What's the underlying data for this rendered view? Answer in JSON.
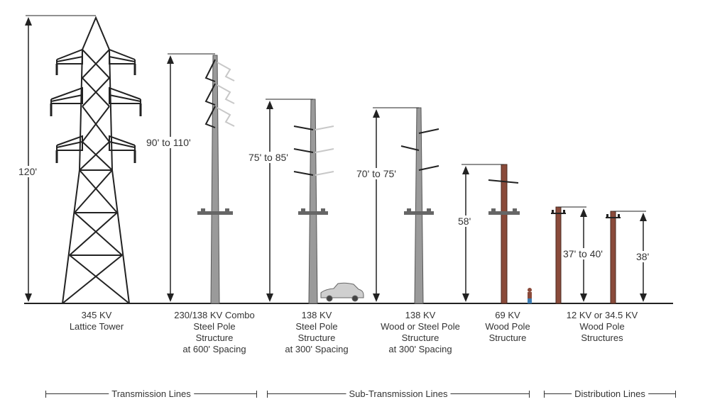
{
  "structures": [
    {
      "voltage": "345 KV",
      "lines": [
        "Lattice Tower"
      ],
      "height": "120'"
    },
    {
      "voltage": "230/138 KV Combo",
      "lines": [
        "Steel Pole",
        "Structure",
        "at 600' Spacing"
      ],
      "height": "90' to 110'"
    },
    {
      "voltage": "138 KV",
      "lines": [
        "Steel Pole",
        "Structure",
        "at 300' Spacing"
      ],
      "height": "75' to 85'"
    },
    {
      "voltage": "138 KV",
      "lines": [
        "Wood or Steel Pole",
        "Structure",
        "at 300' Spacing"
      ],
      "height": "70' to 75'"
    },
    {
      "voltage": "69 KV",
      "lines": [
        "Wood Pole",
        "Structure"
      ],
      "height": "58'"
    },
    {
      "voltage": "12 KV or 34.5 KV",
      "lines": [
        "Wood Pole",
        "Structures"
      ],
      "height_a": "37' to 40'",
      "height_b": "38'"
    }
  ],
  "categories": [
    {
      "label": "Transmission Lines"
    },
    {
      "label": "Sub-Transmission Lines"
    },
    {
      "label": "Distribution Lines"
    }
  ],
  "colors": {
    "steel": "#9a9a9a",
    "steel_dark": "#555555",
    "wood": "#8a4a3a",
    "lines": "#222222",
    "ghost": "#c8c8c8",
    "car": "#cfcfcf"
  }
}
